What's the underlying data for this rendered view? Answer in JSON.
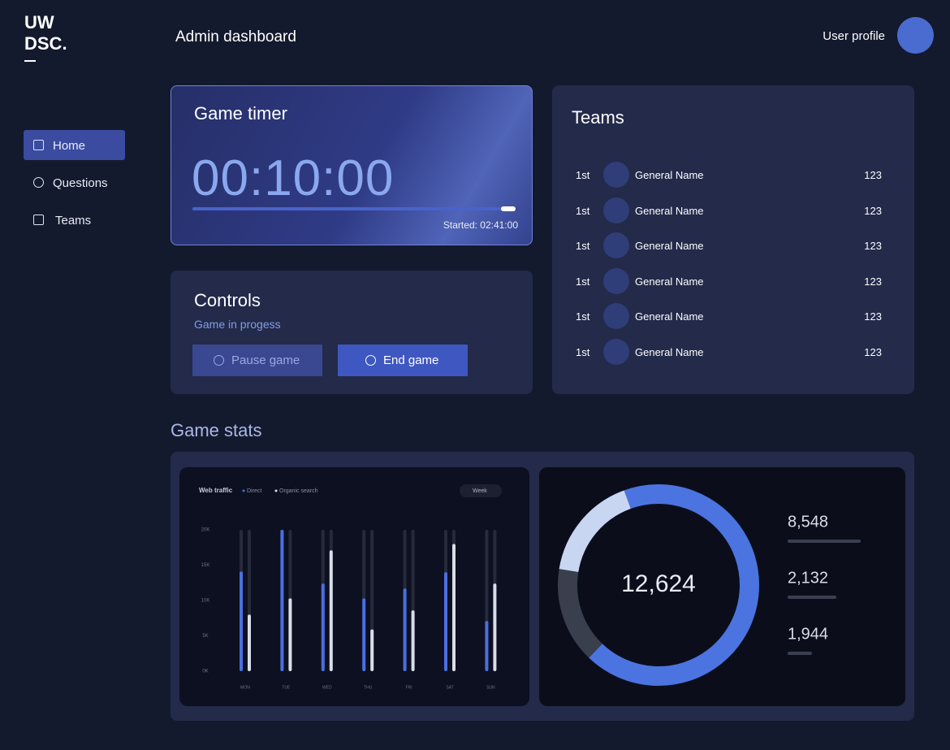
{
  "sidebar": {
    "logo": [
      "UW",
      "DSC."
    ],
    "nav": [
      {
        "label": "Home",
        "active": true
      },
      {
        "label": "Questions",
        "active": false
      },
      {
        "label": "Teams",
        "active": false
      }
    ]
  },
  "header": {
    "title": "Admin dashboard",
    "user": "User profile"
  },
  "timer": {
    "title": "Game timer",
    "time": "00:10:00",
    "started": "Started: 02:41:00",
    "progress": 96
  },
  "controls": {
    "title": "Controls",
    "status": "Game in progess",
    "buttons": [
      "Pause game",
      "End game"
    ]
  },
  "teams": {
    "title": "Teams",
    "rows": [
      {
        "rank": "1st",
        "name": "General Name",
        "score": 123
      },
      {
        "rank": "1st",
        "name": "General Name",
        "score": 123
      },
      {
        "rank": "1st",
        "name": "General Name",
        "score": 123
      },
      {
        "rank": "1st",
        "name": "General Name",
        "score": 123
      },
      {
        "rank": "1st",
        "name": "General Name",
        "score": 123
      },
      {
        "rank": "1st",
        "name": "General Name",
        "score": 123
      }
    ]
  },
  "stats": {
    "title": "Game stats",
    "period": "Week"
  },
  "chart_data": [
    {
      "type": "bar",
      "title": "Web traffic",
      "categories": [
        "MON",
        "TUE",
        "WED",
        "THU",
        "FRI",
        "SAT",
        "SUN"
      ],
      "series": [
        {
          "name": "Direct",
          "color": "#4a6fe0",
          "values": [
            14.1,
            20,
            12.4,
            10.3,
            11.7,
            14,
            7.1
          ]
        },
        {
          "name": "Organic search",
          "color": "#d8dde8",
          "values": [
            8,
            10.3,
            17.1,
            5.9,
            8.6,
            18,
            12.4
          ]
        }
      ],
      "ylim": [
        0,
        20
      ],
      "yticks": [
        {
          "value": 0,
          "label": "0K"
        },
        {
          "value": 5,
          "label": "5K"
        },
        {
          "value": 10,
          "label": "10K"
        },
        {
          "value": 15,
          "label": "15K"
        },
        {
          "value": 20,
          "label": "20K"
        }
      ]
    },
    {
      "type": "pie",
      "center_label": "12,624",
      "values": [
        8548,
        1944,
        2132
      ],
      "value_labels": [
        "8,548",
        "1,944",
        "2,132"
      ],
      "colors": [
        "#4b74e0",
        "#3a3f4e",
        "#c9d6f2"
      ],
      "list_order": [
        0,
        2,
        1
      ]
    }
  ]
}
